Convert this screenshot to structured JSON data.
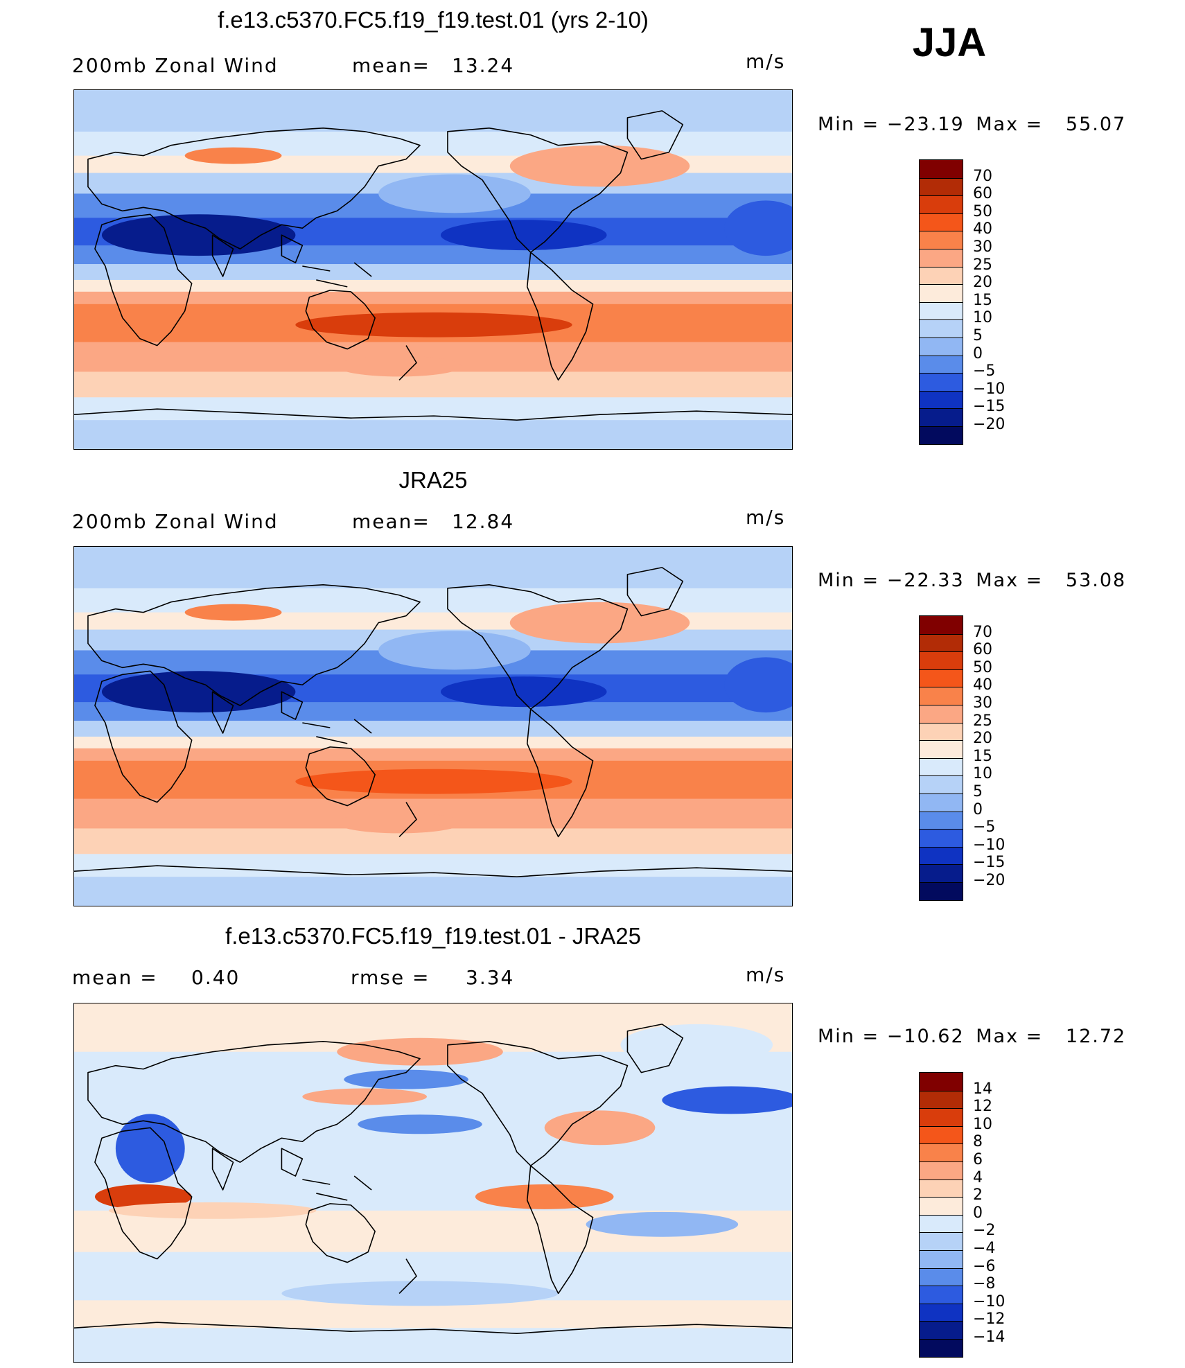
{
  "season": "JJA",
  "units": "m/s",
  "panels": [
    {
      "title": "f.e13.c5370.FC5.f19_f19.test.01 (yrs 2-10)",
      "left_label": "200mb Zonal Wind",
      "stat_label": "mean=",
      "stat_value": "13.24",
      "min_label": "Min",
      "min_value": "−23.19",
      "max_label": "Max",
      "max_value": "55.07"
    },
    {
      "title": "JRA25",
      "left_label": "200mb Zonal Wind",
      "stat_label": "mean=",
      "stat_value": "12.84",
      "min_label": "Min",
      "min_value": "−22.33",
      "max_label": "Max",
      "max_value": "53.08"
    },
    {
      "title": "f.e13.c5370.FC5.f19_f19.test.01 - JRA25",
      "left_label": "mean =",
      "left_value": "0.40",
      "stat_label": "rmse =",
      "stat_value": "3.34",
      "min_label": "Min",
      "min_value": "−10.62",
      "max_label": "Max",
      "max_value": "12.72"
    }
  ],
  "chart_data": [
    {
      "type": "heatmap",
      "title": "f.e13.c5370.FC5.f19_f19.test.01 (yrs 2-10)",
      "variable": "200mb Zonal Wind",
      "units": "m/s",
      "mean": 13.24,
      "min": -23.19,
      "max": 55.07,
      "colorbar_levels": [
        70,
        60,
        50,
        40,
        30,
        25,
        20,
        15,
        10,
        5,
        0,
        -5,
        -10,
        -15,
        -20
      ],
      "colorbar_tick_labels": [
        "70",
        "60",
        "50",
        "40",
        "30",
        "25",
        "20",
        "15",
        "10",
        "5",
        "0",
        "−5",
        "−10",
        "−15",
        "−20"
      ],
      "colors": [
        "#800000",
        "#b22c06",
        "#d93d0c",
        "#f4561a",
        "#f9824a",
        "#fba784",
        "#fdd2b6",
        "#fdebdb",
        "#d9eafb",
        "#b6d2f7",
        "#91b7f3",
        "#5a8cea",
        "#2d5be0",
        "#0f33c2",
        "#061c8c",
        "#020a5e"
      ]
    },
    {
      "type": "heatmap",
      "title": "JRA25",
      "variable": "200mb Zonal Wind",
      "units": "m/s",
      "mean": 12.84,
      "min": -22.33,
      "max": 53.08,
      "colorbar_levels": [
        70,
        60,
        50,
        40,
        30,
        25,
        20,
        15,
        10,
        5,
        0,
        -5,
        -10,
        -15,
        -20
      ],
      "colorbar_tick_labels": [
        "70",
        "60",
        "50",
        "40",
        "30",
        "25",
        "20",
        "15",
        "10",
        "5",
        "0",
        "−5",
        "−10",
        "−15",
        "−20"
      ],
      "colors": [
        "#800000",
        "#b22c06",
        "#d93d0c",
        "#f4561a",
        "#f9824a",
        "#fba784",
        "#fdd2b6",
        "#fdebdb",
        "#d9eafb",
        "#b6d2f7",
        "#91b7f3",
        "#5a8cea",
        "#2d5be0",
        "#0f33c2",
        "#061c8c",
        "#020a5e"
      ]
    },
    {
      "type": "heatmap",
      "title": "f.e13.c5370.FC5.f19_f19.test.01 - JRA25",
      "units": "m/s",
      "mean": 0.4,
      "rmse": 3.34,
      "min": -10.62,
      "max": 12.72,
      "colorbar_levels": [
        14,
        12,
        10,
        8,
        6,
        4,
        2,
        0,
        -2,
        -4,
        -6,
        -8,
        -10,
        -12,
        -14
      ],
      "colorbar_tick_labels": [
        "14",
        "12",
        "10",
        "8",
        "6",
        "4",
        "2",
        "0",
        "−2",
        "−4",
        "−6",
        "−8",
        "−10",
        "−12",
        "−14"
      ],
      "colors": [
        "#800000",
        "#b22c06",
        "#d93d0c",
        "#f4561a",
        "#f9824a",
        "#fba784",
        "#fdd2b6",
        "#fdebdb",
        "#d9eafb",
        "#b6d2f7",
        "#91b7f3",
        "#5a8cea",
        "#2d5be0",
        "#0f33c2",
        "#061c8c",
        "#020a5e"
      ]
    }
  ]
}
